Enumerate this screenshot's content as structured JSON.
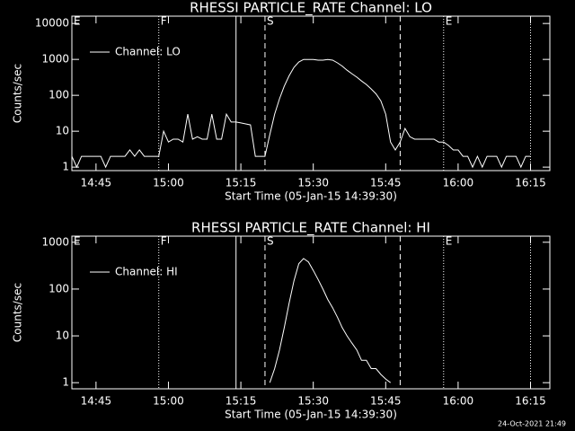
{
  "chart_data": [
    {
      "type": "line",
      "title": "RHESSI PARTICLE_RATE Channel: LO",
      "x_label": "Start Time (05-Jan-15 14:39:30)",
      "y_label": "Counts/sec",
      "log_y": true,
      "legend": "upper left",
      "xlim": [
        "14:40",
        "16:19"
      ],
      "xticks": [
        "14:45",
        "15:00",
        "15:15",
        "15:30",
        "15:45",
        "16:00",
        "16:15"
      ],
      "ylim": [
        0.8,
        16000
      ],
      "yticks": [
        1,
        10,
        100,
        1000,
        10000
      ],
      "markers": [
        {
          "x": "14:40",
          "style": "solid",
          "label": "E"
        },
        {
          "x": "14:58",
          "style": "dotted",
          "label": "F"
        },
        {
          "x": "15:14",
          "style": "solid"
        },
        {
          "x": "15:20",
          "style": "dashed",
          "label": "S"
        },
        {
          "x": "15:48",
          "style": "dashed"
        },
        {
          "x": "15:57",
          "style": "dotted",
          "label": "E"
        },
        {
          "x": "16:15",
          "style": "dotted"
        }
      ],
      "x": [
        "14:40",
        "14:41",
        "14:42",
        "14:43",
        "14:44",
        "14:45",
        "14:46",
        "14:47",
        "14:48",
        "14:49",
        "14:50",
        "14:51",
        "14:52",
        "14:53",
        "14:54",
        "14:55",
        "14:56",
        "14:57",
        "14:58",
        "14:59",
        "15:00",
        "15:01",
        "15:02",
        "15:03",
        "15:04",
        "15:05",
        "15:06",
        "15:07",
        "15:08",
        "15:09",
        "15:10",
        "15:11",
        "15:12",
        "15:13",
        "15:14",
        "15:15",
        "15:16",
        "15:17",
        "15:18",
        "15:19",
        "15:20",
        "15:21",
        "15:22",
        "15:23",
        "15:24",
        "15:25",
        "15:26",
        "15:27",
        "15:28",
        "15:29",
        "15:30",
        "15:31",
        "15:32",
        "15:33",
        "15:34",
        "15:35",
        "15:36",
        "15:37",
        "15:38",
        "15:39",
        "15:40",
        "15:41",
        "15:42",
        "15:43",
        "15:44",
        "15:45",
        "15:46",
        "15:47",
        "15:48",
        "15:49",
        "15:50",
        "15:51",
        "15:52",
        "15:53",
        "15:54",
        "15:55",
        "15:56",
        "15:57",
        "15:58",
        "15:59",
        "16:00",
        "16:01",
        "16:02",
        "16:03",
        "16:04",
        "16:05",
        "16:06",
        "16:07",
        "16:08",
        "16:09",
        "16:10",
        "16:11",
        "16:12",
        "16:13",
        "16:14",
        "16:15"
      ],
      "series": [
        {
          "name": "Channel: LO",
          "color": "#ffffff",
          "values": [
            2,
            1,
            2,
            2,
            2,
            2,
            2,
            1,
            2,
            2,
            2,
            2,
            3,
            2,
            3,
            2,
            2,
            2,
            2,
            10,
            5,
            6,
            6,
            5,
            30,
            6,
            7,
            6,
            6,
            30,
            6,
            6,
            30,
            18,
            18,
            17,
            16,
            15,
            2,
            2,
            2,
            8,
            30,
            80,
            180,
            350,
            600,
            850,
            1000,
            1000,
            1000,
            950,
            950,
            1000,
            950,
            800,
            650,
            500,
            400,
            320,
            250,
            200,
            150,
            110,
            70,
            30,
            5,
            3,
            5,
            12,
            7,
            6,
            6,
            6,
            6,
            6,
            5,
            5,
            4,
            3,
            3,
            2,
            2,
            1,
            2,
            1,
            2,
            2,
            2,
            1,
            2,
            2,
            2,
            1,
            2,
            2
          ]
        }
      ]
    },
    {
      "type": "line",
      "title": "RHESSI PARTICLE_RATE Channel: HI",
      "x_label": "Start Time (05-Jan-15 14:39:30)",
      "y_label": "Counts/sec",
      "log_y": true,
      "legend": "upper left",
      "xlim": [
        "14:40",
        "16:19"
      ],
      "xticks": [
        "14:45",
        "15:00",
        "15:15",
        "15:30",
        "15:45",
        "16:00",
        "16:15"
      ],
      "ylim": [
        0.74,
        1350
      ],
      "yticks": [
        1,
        10,
        100,
        1000
      ],
      "markers": [
        {
          "x": "14:40",
          "style": "solid",
          "label": "E"
        },
        {
          "x": "14:58",
          "style": "dotted",
          "label": "F"
        },
        {
          "x": "15:14",
          "style": "solid"
        },
        {
          "x": "15:20",
          "style": "dashed",
          "label": "S"
        },
        {
          "x": "15:48",
          "style": "dashed"
        },
        {
          "x": "15:57",
          "style": "dotted",
          "label": "E"
        },
        {
          "x": "16:15",
          "style": "dotted"
        }
      ],
      "x": [
        "15:21",
        "15:22",
        "15:23",
        "15:24",
        "15:25",
        "15:26",
        "15:27",
        "15:28",
        "15:29",
        "15:30",
        "15:31",
        "15:32",
        "15:33",
        "15:34",
        "15:35",
        "15:36",
        "15:37",
        "15:38",
        "15:39",
        "15:40",
        "15:41",
        "15:42",
        "15:43",
        "15:44",
        "15:45",
        "15:46"
      ],
      "series": [
        {
          "name": "Channel: HI",
          "color": "#ffffff",
          "values": [
            1,
            2,
            5,
            15,
            50,
            150,
            350,
            450,
            380,
            250,
            160,
            100,
            60,
            40,
            25,
            15,
            10,
            7,
            5,
            3,
            3,
            2,
            2,
            1.5,
            1.2,
            1
          ]
        }
      ]
    }
  ],
  "footer": "24-Oct-2021 21:49"
}
